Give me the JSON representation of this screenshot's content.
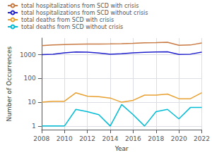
{
  "chart_data": {
    "type": "line",
    "x": [
      2008,
      2009,
      2010,
      2011,
      2012,
      2013,
      2014,
      2015,
      2016,
      2017,
      2018,
      2019,
      2020,
      2021,
      2022
    ],
    "series": [
      {
        "name": "total hospitalizations from SCD with crisis",
        "color": "#c87941",
        "values": [
          2400,
          2550,
          2650,
          2750,
          2800,
          2820,
          2850,
          2900,
          3000,
          3150,
          3200,
          3300,
          2500,
          2550,
          3100
        ]
      },
      {
        "name": "total hospitalizations from SCD without crisis",
        "color": "#2020cc",
        "values": [
          1000,
          1050,
          1200,
          1300,
          1280,
          1180,
          1050,
          1100,
          1200,
          1260,
          1300,
          1320,
          1020,
          1050,
          1280
        ]
      },
      {
        "name": "total deaths from SCD with crisis",
        "color": "#e8a030",
        "values": [
          10,
          11,
          11,
          25,
          18,
          17,
          15,
          10,
          12,
          20,
          20,
          22,
          14,
          14,
          25
        ]
      },
      {
        "name": "total deaths from SCD without crisis",
        "color": "#00bcd4",
        "values": [
          1,
          1,
          1,
          5,
          4,
          3,
          1,
          8,
          3,
          1,
          4,
          5,
          2,
          6,
          6
        ]
      }
    ],
    "xlabel": "Year",
    "ylabel": "Number of Occurrences",
    "xlim": [
      2008,
      2022
    ],
    "xticks": [
      2008,
      2010,
      2012,
      2014,
      2016,
      2018,
      2020,
      2022
    ],
    "ylim": [
      0.7,
      5000
    ],
    "yticks": [
      1,
      10,
      100,
      1000
    ],
    "log": "y",
    "grid": true,
    "legend": "top"
  }
}
